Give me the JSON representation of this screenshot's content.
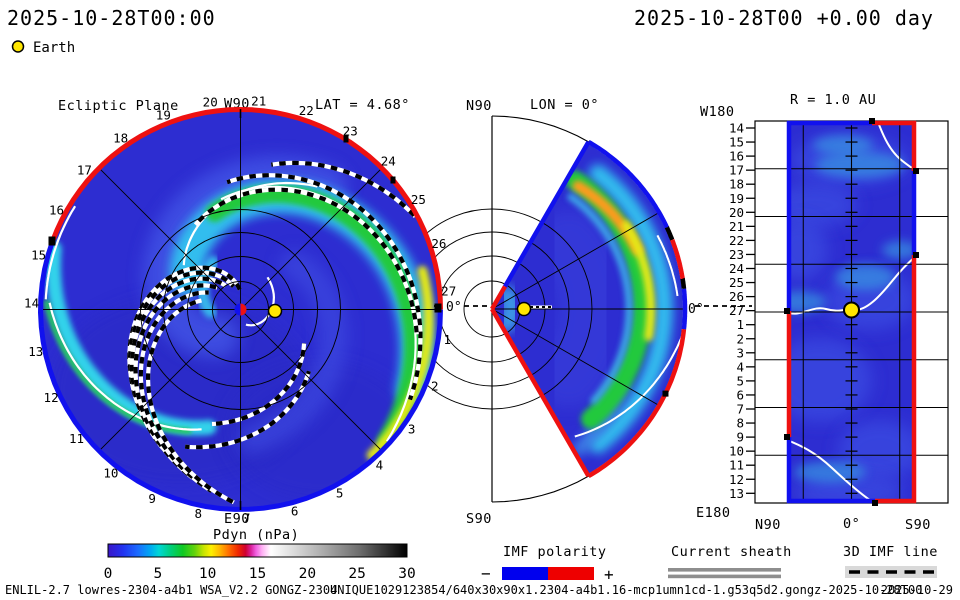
{
  "header": {
    "left_timestamp": "2025-10-28T00:00",
    "right_timestamp": "2025-10-28T00 +0.00 day",
    "earth_label": "Earth"
  },
  "panels": {
    "ecliptic": {
      "title": "Ecliptic Plane",
      "top_label": "W90",
      "bottom_label": "E90",
      "lat_label": "LAT = 4.68°",
      "direction_label": "0°",
      "day_labels": [
        "1",
        "2",
        "3",
        "4",
        "5",
        "6",
        "7",
        "8",
        "9",
        "10",
        "11",
        "12",
        "13",
        "14",
        "15",
        "16",
        "17",
        "18",
        "19",
        "20",
        "21",
        "22",
        "23",
        "24",
        "25",
        "26",
        "27"
      ]
    },
    "meridional": {
      "title": "LON = 0°",
      "north_label": "N90",
      "south_label": "S90",
      "direction_label": "0°"
    },
    "radial": {
      "title": "R = 1.0 AU",
      "west_label": "W180",
      "east_label": "E180",
      "x_labels": [
        "N90",
        "0°",
        "S90"
      ],
      "day_labels": [
        "14",
        "15",
        "16",
        "17",
        "18",
        "19",
        "20",
        "21",
        "22",
        "23",
        "24",
        "25",
        "26",
        "27",
        "1",
        "2",
        "3",
        "4",
        "5",
        "6",
        "7",
        "8",
        "9",
        "10",
        "11",
        "12",
        "13"
      ]
    }
  },
  "colorbar": {
    "title": "Pdyn (nPa)",
    "ticks": [
      "0",
      "5",
      "10",
      "15",
      "20",
      "25",
      "30"
    ],
    "stops": [
      [
        0,
        "#3a16c8"
      ],
      [
        0.05,
        "#2233f0"
      ],
      [
        0.1,
        "#1b6bff"
      ],
      [
        0.14,
        "#00a6f2"
      ],
      [
        0.17,
        "#00d6d6"
      ],
      [
        0.21,
        "#00cf7a"
      ],
      [
        0.25,
        "#0fc923"
      ],
      [
        0.29,
        "#63d30c"
      ],
      [
        0.32,
        "#c6e400"
      ],
      [
        0.345,
        "#fdf000"
      ],
      [
        0.375,
        "#ffb400"
      ],
      [
        0.405,
        "#ff6a00"
      ],
      [
        0.435,
        "#f02800"
      ],
      [
        0.46,
        "#cf0030"
      ],
      [
        0.478,
        "#d8209a"
      ],
      [
        0.495,
        "#f060e0"
      ],
      [
        0.515,
        "#ffaef4"
      ],
      [
        0.545,
        "#ffffff"
      ],
      [
        0.62,
        "#dcdcdc"
      ],
      [
        0.72,
        "#ababab"
      ],
      [
        0.84,
        "#6e6e6e"
      ],
      [
        1,
        "#000000"
      ]
    ]
  },
  "legends": {
    "imf": {
      "label": "IMF polarity",
      "minus": "−",
      "plus": "+",
      "neg_color": "#0000ee",
      "pos_color": "#ee0000"
    },
    "sheath": {
      "label": "Current sheath",
      "bar_color": "#8e8e8e"
    },
    "imf_line": {
      "label": "3D IMF line",
      "bg_color": "#d9d9d9"
    }
  },
  "footer": {
    "model": "ENLIL-2.7 lowres-2304-a4b1 WSA_V2.2 GONGZ-2304",
    "watermark": "UNIQUE1029123854/640x30x90x1.2304-a4b1.16-mcp1umn1cd-1.g53q5d2.gongz-2025-10-28T00",
    "watermark_date": "2025-10-29",
    "watermark_color": "#e9e5e5"
  },
  "palette": {
    "base": "#2d2dd1",
    "light": "#4355e6",
    "light2": "#3c49e0",
    "cyan": "#31bdee",
    "cyan2": "#30d2ea",
    "green": "#23c93e",
    "green2": "#27c85e",
    "yellow": "#e3ea12",
    "orange": "#ff9b1e",
    "border_pos": "#ee1111",
    "border_neg": "#1111ee",
    "label_red": "#dd2222",
    "earth": "#ffe600",
    "sheet_white": "#ffffff"
  },
  "chart_data": [
    {
      "type": "heatmap",
      "panel": "Ecliptic Plane",
      "quantity": "Pdyn (nPa)",
      "value_range": [
        0,
        30
      ],
      "view": "polar sun-centered ecliptic cut, W90 at top, E90 at bottom, Earth direction 0° at right, LAT = 4.68°",
      "outer_boundary_day_labels": [
        1,
        2,
        3,
        4,
        5,
        6,
        7,
        8,
        9,
        10,
        11,
        12,
        13,
        14,
        15,
        16,
        17,
        18,
        19,
        20,
        21,
        22,
        23,
        24,
        25,
        26,
        27
      ],
      "day_label_layout": {
        "day27_angle_deg": 5,
        "step_deg": 13.333,
        "numbers_increase": "clockwise"
      },
      "imf_polarity_boundary": {
        "red_positive_arc_deg": [
          0,
          160
        ],
        "blue_negative_arc_deg": [
          160,
          360
        ]
      },
      "features": [
        {
          "name": "corotating high-pressure stream",
          "appearance": "green band with yellow core ≈8-14 nPa",
          "location": "spirals from ~100° at r≈0.5R clockwise to outer edge, yellow maximum hugging boundary between 10° and -45°"
        },
        {
          "name": "secondary stream",
          "appearance": "cyan/green band ≈5-8 nPa",
          "location": "left edge ≈170°-250°, r≈0.6-1.0R"
        },
        {
          "name": "broad rarefaction/background wind",
          "appearance": "blue ≈1-3 nPa",
          "location": "everywhere else"
        },
        {
          "name": "heliospheric current sheet",
          "appearance": "thin white spiral lines"
        },
        {
          "name": "3D IMF lines",
          "appearance": "black/white dashed Parker spirals, bundle over upper-left quadrant and along streams"
        }
      ],
      "markers": {
        "sun": "center, half-blue/half-red polarity symbol",
        "earth": "yellow dot at 1 AU toward 0°"
      }
    },
    {
      "type": "heatmap",
      "panel": "Meridional plane",
      "title": "LON = 0°",
      "quantity": "Pdyn (nPa)",
      "value_range": [
        0,
        30
      ],
      "view": "latitude wedge ±60° about equator, N90 up, S90 down, r out to boundary",
      "features": [
        {
          "name": "stream crossing",
          "appearance": "green arc with orange core (≈14-18 nPa) in northern half, yellow core near equator",
          "location": "r≈0.75-0.85R from +60° edge down to -45°"
        },
        {
          "name": "cyan sheath",
          "location": "between stream and outer boundary"
        },
        {
          "name": "current sheet",
          "appearance": "white lines near apex below equator and lower-right quadrant"
        }
      ],
      "imf_polarity_boundary": {
        "arc": "blue from +60° to +6°, red +21° to +9° segment region, red -6° to -60°; top radial edge blue, bottom radial edge red"
      },
      "markers": {
        "earth": "yellow dot on equator at 1 AU"
      }
    },
    {
      "type": "heatmap",
      "panel": "Sphere map",
      "title": "R = 1.0 AU",
      "quantity": "Pdyn (nPa)",
      "value_range": [
        0,
        30
      ],
      "axes": {
        "x": [
          "N90",
          "0°",
          "S90"
        ],
        "y_top": "W180",
        "y_bottom": "E180",
        "y_day_labels": [
          14,
          15,
          16,
          17,
          18,
          19,
          20,
          21,
          22,
          23,
          24,
          25,
          26,
          27,
          1,
          2,
          3,
          4,
          5,
          6,
          7,
          8,
          9,
          10,
          11,
          12,
          13
        ]
      },
      "features": [
        {
          "name": "mostly quiet wind",
          "appearance": "blue ≈1-3 nPa with lighter mottling"
        },
        {
          "name": "current sheet traces",
          "appearance": "three white curves crossing the map (top-right, through Earth row, bottom-left)"
        },
        {
          "name": "polarity border",
          "appearance": "left edge blue/red/blue, right edge red/blue/red, top and bottom blue then red"
        }
      ],
      "markers": {
        "earth": "yellow dot at center (0°, day 27 row)"
      }
    }
  ]
}
